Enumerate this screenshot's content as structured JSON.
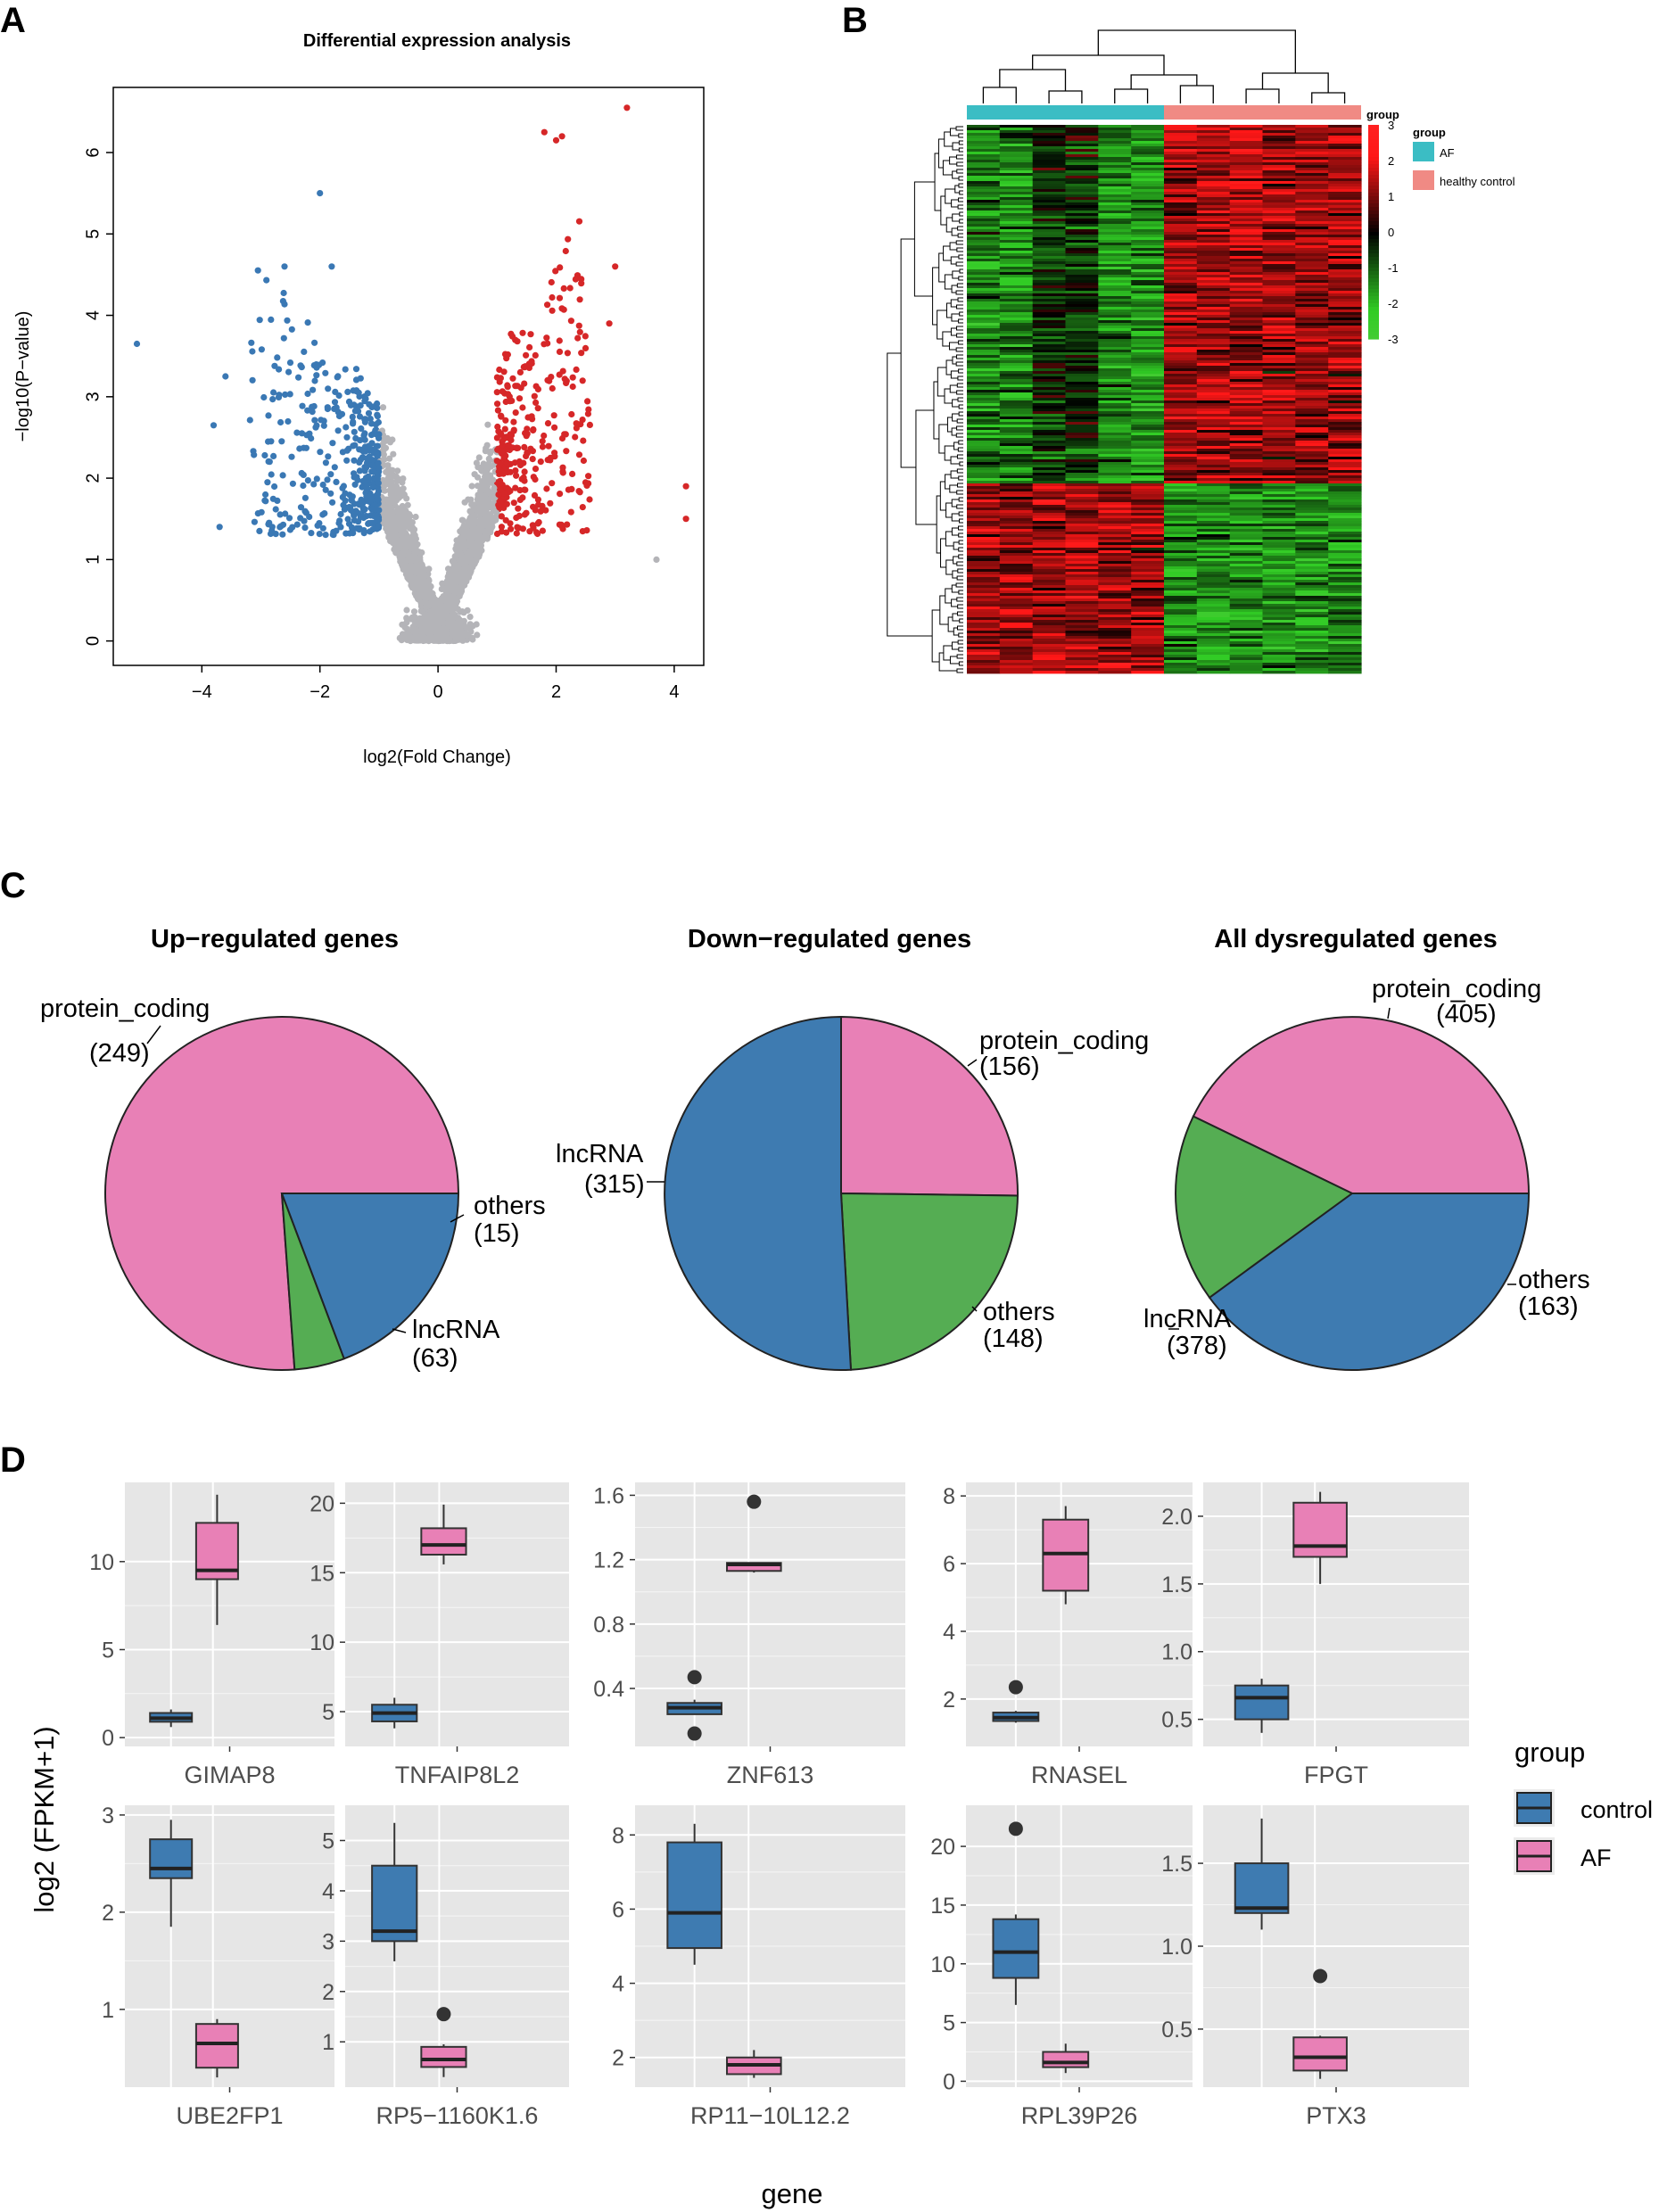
{
  "panels": {
    "A": "A",
    "B": "B",
    "C": "C",
    "D": "D"
  },
  "colors": {
    "up": "#d62728",
    "down": "#3a78b4",
    "ns": "#b4b4b8",
    "af": "#3bbdc4",
    "healthy": "#f08a84",
    "heat_high": "#ff2020",
    "heat_mid": "#000000",
    "heat_low": "#44cc33",
    "pie_protein": "#e880b6",
    "pie_lnc": "#3e7bb1",
    "pie_others": "#55ad53",
    "box_control": "#3e7bb1",
    "box_af": "#e880b6",
    "ggpanel": "#e6e6e6"
  },
  "chart_data": [
    {
      "id": "volcano",
      "type": "scatter",
      "title": "Differential expression analysis",
      "xlabel": "log2(Fold Change)",
      "ylabel": "−log10(P−value)",
      "xlim": [
        -5.5,
        4.5
      ],
      "ylim": [
        -0.3,
        6.8
      ],
      "xticks": [
        -4,
        -2,
        0,
        2,
        4
      ],
      "xtick_labels": [
        "−4",
        "−2",
        "0",
        "2",
        "4"
      ],
      "yticks": [
        0,
        1,
        2,
        3,
        4,
        5,
        6
      ],
      "ytick_labels": [
        "0",
        "1",
        "2",
        "3",
        "4",
        "5",
        "6"
      ],
      "thresholds": {
        "log2fc": 1,
        "neglog10p": 1.3
      },
      "highlight_points": [
        {
          "x": -5.1,
          "y": 3.65
        },
        {
          "x": -3.8,
          "y": 2.65
        },
        {
          "x": -3.7,
          "y": 1.4
        },
        {
          "x": -3.6,
          "y": 3.25
        },
        {
          "x": -2.6,
          "y": 4.6
        },
        {
          "x": -2.0,
          "y": 5.5
        },
        {
          "x": -1.8,
          "y": 4.6
        },
        {
          "x": 3.2,
          "y": 6.55
        },
        {
          "x": 2.1,
          "y": 6.2
        },
        {
          "x": 2.0,
          "y": 6.15
        },
        {
          "x": 1.8,
          "y": 6.25
        },
        {
          "x": 3.0,
          "y": 4.6
        },
        {
          "x": 2.9,
          "y": 3.9
        },
        {
          "x": 4.2,
          "y": 1.9
        },
        {
          "x": 4.2,
          "y": 1.5
        },
        {
          "x": 3.7,
          "y": 1.0
        }
      ]
    },
    {
      "id": "heatmap",
      "type": "heatmap",
      "legend_title": "group",
      "groups": [
        "AF",
        "healthy control"
      ],
      "n_samples_per_group": 6,
      "color_scale_ticks": [
        3,
        2,
        1,
        0,
        -1,
        -2,
        -3
      ],
      "color_scale_labels": [
        "3",
        "2",
        "1",
        "0",
        "-1",
        "-2",
        "-3"
      ],
      "up_in_control_fraction": 0.65,
      "down_in_control_fraction": 0.35
    },
    {
      "id": "pie_up",
      "type": "pie",
      "title": "Up−regulated genes",
      "slices": [
        {
          "label": "protein_coding",
          "value": 249,
          "count_label": "(249)"
        },
        {
          "label": "others",
          "value": 15,
          "count_label": "(15)"
        },
        {
          "label": "lncRNA",
          "value": 63,
          "count_label": "(63)"
        }
      ]
    },
    {
      "id": "pie_down",
      "type": "pie",
      "title": "Down−regulated genes",
      "slices": [
        {
          "label": "protein_coding",
          "value": 156,
          "count_label": "(156)"
        },
        {
          "label": "others",
          "value": 148,
          "count_label": "(148)"
        },
        {
          "label": "lncRNA",
          "value": 315,
          "count_label": "(315)"
        }
      ]
    },
    {
      "id": "pie_all",
      "type": "pie",
      "title": "All dysregulated genes",
      "slices": [
        {
          "label": "protein_coding",
          "value": 405,
          "count_label": "(405)"
        },
        {
          "label": "others",
          "value": 163,
          "count_label": "(163)"
        },
        {
          "label": "lncRNA",
          "value": 378,
          "count_label": "(378)"
        }
      ]
    },
    {
      "id": "boxplots",
      "type": "bar",
      "subtype": "boxplot",
      "ylabel": "log2 (FPKM+1)",
      "xlabel": "gene",
      "legend_title": "group",
      "legend": [
        "control",
        "AF"
      ],
      "genes": [
        {
          "name": "GIMAP8",
          "ylim": [
            -0.5,
            14.5
          ],
          "ticks": [
            0,
            5,
            10
          ],
          "tick_labels": [
            "0",
            "5",
            "10"
          ],
          "control": {
            "min": 0.6,
            "q1": 0.9,
            "median": 1.1,
            "q3": 1.4,
            "max": 1.6,
            "outliers": []
          },
          "af": {
            "min": 6.4,
            "q1": 9.0,
            "median": 9.5,
            "q3": 12.2,
            "max": 13.8,
            "outliers": []
          }
        },
        {
          "name": "TNFAIP8L2",
          "ylim": [
            2.5,
            21.5
          ],
          "ticks": [
            5,
            10,
            15,
            20
          ],
          "tick_labels": [
            "5",
            "10",
            "15",
            "20"
          ],
          "control": {
            "min": 3.8,
            "q1": 4.3,
            "median": 4.9,
            "q3": 5.5,
            "max": 6.0,
            "outliers": []
          },
          "af": {
            "min": 15.6,
            "q1": 16.3,
            "median": 17.0,
            "q3": 18.2,
            "max": 19.9,
            "outliers": []
          }
        },
        {
          "name": "ZNF613",
          "ylim": [
            0.04,
            1.68
          ],
          "ticks": [
            0.4,
            0.8,
            1.2,
            1.6
          ],
          "tick_labels": [
            "0.4",
            "0.8",
            "1.2",
            "1.6"
          ],
          "control": {
            "min": 0.24,
            "q1": 0.24,
            "median": 0.28,
            "q3": 0.31,
            "max": 0.33,
            "outliers": [
              0.12,
              0.47
            ]
          },
          "af": {
            "min": 1.12,
            "q1": 1.13,
            "median": 1.17,
            "q3": 1.18,
            "max": 1.18,
            "outliers": [
              1.56
            ]
          }
        },
        {
          "name": "RNASEL",
          "ylim": [
            0.6,
            8.4
          ],
          "ticks": [
            2,
            4,
            6,
            8
          ],
          "tick_labels": [
            "2",
            "4",
            "6",
            "8"
          ],
          "control": {
            "min": 1.3,
            "q1": 1.35,
            "median": 1.45,
            "q3": 1.6,
            "max": 1.65,
            "outliers": [
              2.35
            ]
          },
          "af": {
            "min": 4.8,
            "q1": 5.2,
            "median": 6.3,
            "q3": 7.3,
            "max": 7.7,
            "outliers": []
          }
        },
        {
          "name": "FPGT",
          "ylim": [
            0.3,
            2.25
          ],
          "ticks": [
            0.5,
            1.0,
            1.5,
            2.0
          ],
          "tick_labels": [
            "0.5",
            "1.0",
            "1.5",
            "2.0"
          ],
          "control": {
            "min": 0.4,
            "q1": 0.5,
            "median": 0.66,
            "q3": 0.75,
            "max": 0.8,
            "outliers": []
          },
          "af": {
            "min": 1.5,
            "q1": 1.7,
            "median": 1.78,
            "q3": 2.1,
            "max": 2.18,
            "outliers": []
          }
        },
        {
          "name": "UBE2FP1",
          "ylim": [
            0.2,
            3.1
          ],
          "ticks": [
            1,
            2,
            3
          ],
          "tick_labels": [
            "1",
            "2",
            "3"
          ],
          "control": {
            "min": 1.85,
            "q1": 2.35,
            "median": 2.45,
            "q3": 2.75,
            "max": 2.95,
            "outliers": []
          },
          "af": {
            "min": 0.3,
            "q1": 0.4,
            "median": 0.65,
            "q3": 0.85,
            "max": 0.9,
            "outliers": []
          }
        },
        {
          "name": "RP5−1160K1.6",
          "ylim": [
            0.1,
            5.7
          ],
          "ticks": [
            1,
            2,
            3,
            4,
            5
          ],
          "tick_labels": [
            "1",
            "2",
            "3",
            "4",
            "5"
          ],
          "control": {
            "min": 2.6,
            "q1": 3.0,
            "median": 3.2,
            "q3": 4.5,
            "max": 5.35,
            "outliers": []
          },
          "af": {
            "min": 0.3,
            "q1": 0.5,
            "median": 0.65,
            "q3": 0.9,
            "max": 0.95,
            "outliers": [
              1.55
            ]
          }
        },
        {
          "name": "RP11−10L12.2",
          "ylim": [
            1.2,
            8.8
          ],
          "ticks": [
            2,
            4,
            6,
            8
          ],
          "tick_labels": [
            "2",
            "4",
            "6",
            "8"
          ],
          "control": {
            "min": 4.5,
            "q1": 4.95,
            "median": 5.9,
            "q3": 7.8,
            "max": 8.3,
            "outliers": []
          },
          "af": {
            "min": 1.45,
            "q1": 1.55,
            "median": 1.8,
            "q3": 2.0,
            "max": 2.2,
            "outliers": []
          }
        },
        {
          "name": "RPL39P26",
          "ylim": [
            -0.5,
            23.5
          ],
          "ticks": [
            0,
            5,
            10,
            15,
            20
          ],
          "tick_labels": [
            "0",
            "5",
            "10",
            "15",
            "20"
          ],
          "control": {
            "min": 6.5,
            "q1": 8.8,
            "median": 11.0,
            "q3": 13.8,
            "max": 14.2,
            "outliers": [
              21.5
            ]
          },
          "af": {
            "min": 0.7,
            "q1": 1.2,
            "median": 1.6,
            "q3": 2.5,
            "max": 3.2,
            "outliers": []
          }
        },
        {
          "name": "PTX3",
          "ylim": [
            0.15,
            1.85
          ],
          "ticks": [
            0.5,
            1.0,
            1.5
          ],
          "tick_labels": [
            "0.5",
            "1.0",
            "1.5"
          ],
          "control": {
            "min": 1.1,
            "q1": 1.2,
            "median": 1.23,
            "q3": 1.5,
            "max": 1.77,
            "outliers": []
          },
          "af": {
            "min": 0.2,
            "q1": 0.25,
            "median": 0.33,
            "q3": 0.45,
            "max": 0.46,
            "outliers": [
              0.82
            ]
          }
        }
      ]
    }
  ]
}
